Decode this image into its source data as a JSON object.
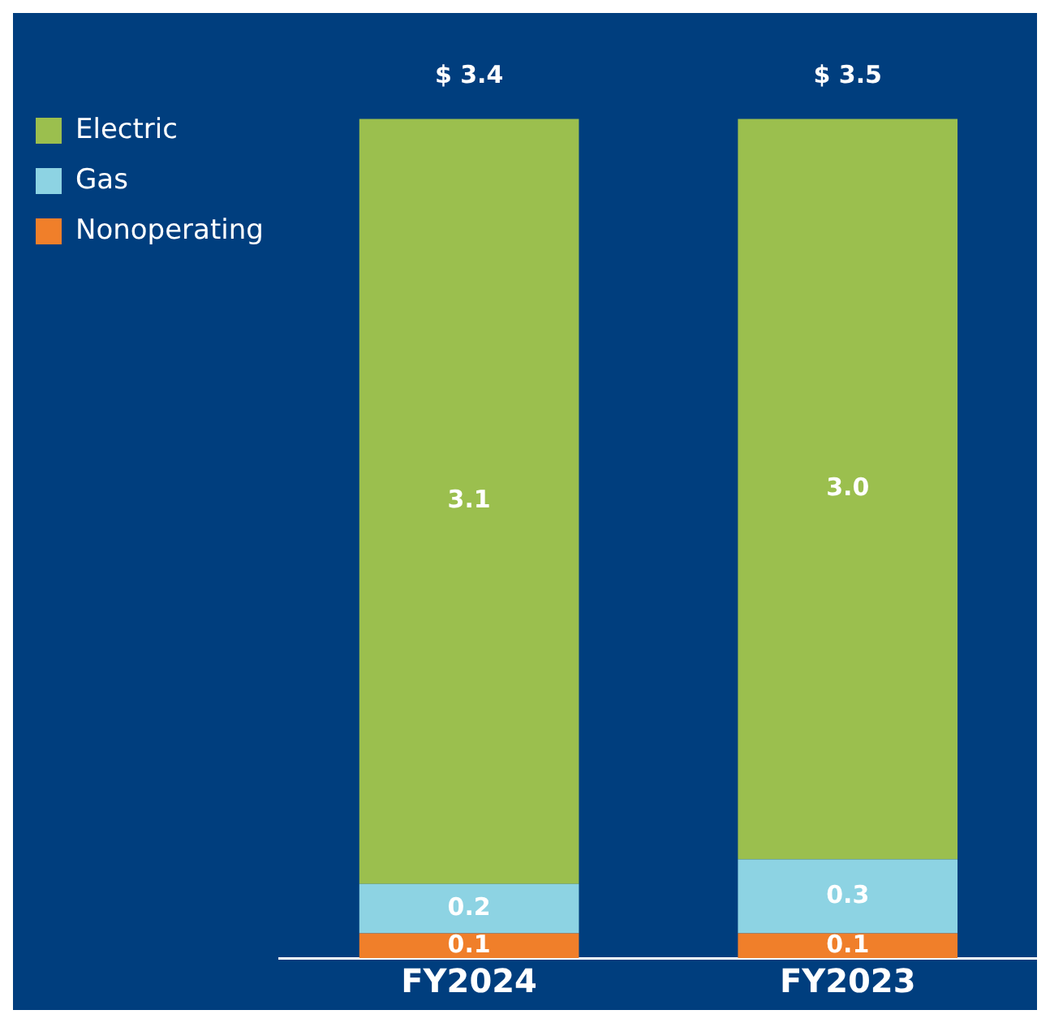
{
  "chart_data": {
    "type": "bar",
    "stacked": true,
    "categories": [
      "FY2024",
      "FY2023"
    ],
    "series": [
      {
        "name": "Nonoperating",
        "color": "#f07f2a",
        "values": [
          0.1,
          0.1
        ],
        "value_labels": [
          "0.1",
          "0.1"
        ]
      },
      {
        "name": "Gas",
        "color": "#8dd3e3",
        "values": [
          0.2,
          0.3
        ],
        "value_labels": [
          "0.2",
          "0.3"
        ]
      },
      {
        "name": "Electric",
        "color": "#9bbf4e",
        "values": [
          3.1,
          3.0
        ],
        "value_labels": [
          "3.1",
          "3.0"
        ]
      }
    ],
    "totals": [
      "$ 3.4",
      "$ 3.5"
    ],
    "legend": "top left",
    "grid": false
  }
}
